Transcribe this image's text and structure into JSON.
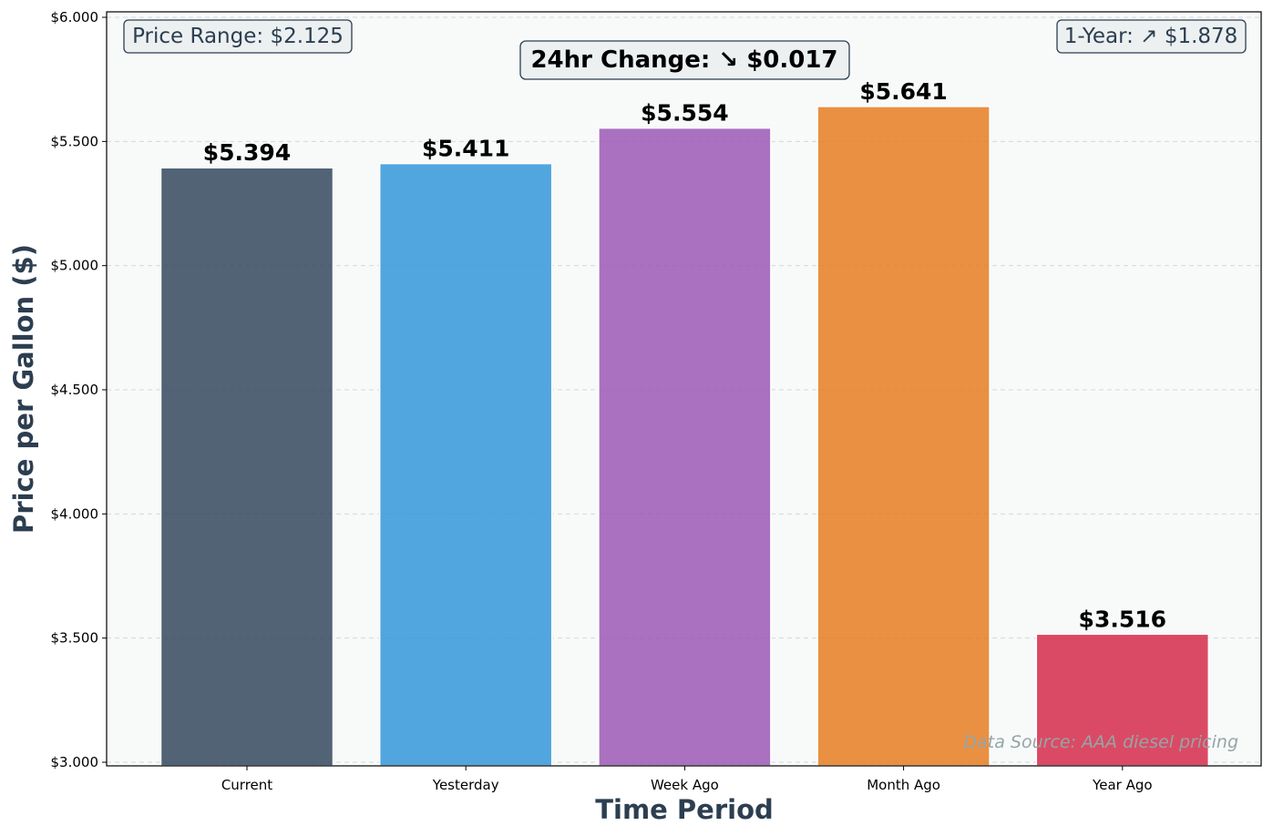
{
  "chart_data": {
    "type": "bar",
    "categories": [
      "Current",
      "Yesterday",
      "Week Ago",
      "Month Ago",
      "Year Ago"
    ],
    "values": [
      5.394,
      5.411,
      5.554,
      5.641,
      3.516
    ],
    "value_labels": [
      "$5.394",
      "$5.411",
      "$5.554",
      "$5.641",
      "$3.516"
    ],
    "colors": [
      "#34495e",
      "#3498db",
      "#9b59b6",
      "#e67e22",
      "#d62c4b"
    ],
    "xlabel": "Time Period",
    "ylabel": "Price per Gallon ($)",
    "ylim": [
      3.0,
      6.0
    ],
    "yticks": [
      3.0,
      3.5,
      4.0,
      4.5,
      5.0,
      5.5,
      6.0
    ],
    "ytick_labels": [
      "$3.000",
      "$3.500",
      "$4.000",
      "$4.500",
      "$5.000",
      "$5.500",
      "$6.000"
    ],
    "grid": "horizontal dashed",
    "annotations": {
      "price_range": "Price Range: $2.125",
      "change_24hr": "24hr Change: ↘ $0.017",
      "one_year": "1-Year: ↗ $1.878",
      "source": "Data Source: AAA diesel pricing"
    }
  }
}
